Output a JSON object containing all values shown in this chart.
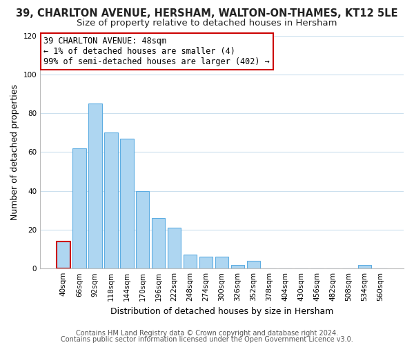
{
  "title": "39, CHARLTON AVENUE, HERSHAM, WALTON-ON-THAMES, KT12 5LE",
  "subtitle": "Size of property relative to detached houses in Hersham",
  "xlabel": "Distribution of detached houses by size in Hersham",
  "ylabel": "Number of detached properties",
  "bar_labels": [
    "40sqm",
    "66sqm",
    "92sqm",
    "118sqm",
    "144sqm",
    "170sqm",
    "196sqm",
    "222sqm",
    "248sqm",
    "274sqm",
    "300sqm",
    "326sqm",
    "352sqm",
    "378sqm",
    "404sqm",
    "430sqm",
    "456sqm",
    "482sqm",
    "508sqm",
    "534sqm",
    "560sqm"
  ],
  "bar_values": [
    14,
    62,
    85,
    70,
    67,
    40,
    26,
    21,
    7,
    6,
    6,
    2,
    4,
    0,
    0,
    0,
    0,
    0,
    0,
    2,
    0
  ],
  "bar_color": "#aed6f1",
  "bar_edge_color": "#5dade2",
  "highlight_bar_index": 0,
  "highlight_bar_edge_color": "#cc0000",
  "ylim": [
    0,
    120
  ],
  "yticks": [
    0,
    20,
    40,
    60,
    80,
    100,
    120
  ],
  "annotation_line1": "39 CHARLTON AVENUE: 48sqm",
  "annotation_line2": "← 1% of detached houses are smaller (4)",
  "annotation_line3": "99% of semi-detached houses are larger (402) →",
  "footer_line1": "Contains HM Land Registry data © Crown copyright and database right 2024.",
  "footer_line2": "Contains public sector information licensed under the Open Government Licence v3.0.",
  "bg_color": "#ffffff",
  "plot_bg_color": "#ffffff",
  "grid_color": "#cce0ee",
  "title_fontsize": 10.5,
  "subtitle_fontsize": 9.5,
  "axis_label_fontsize": 9,
  "tick_fontsize": 7.5,
  "annotation_fontsize": 8.5,
  "footer_fontsize": 7
}
